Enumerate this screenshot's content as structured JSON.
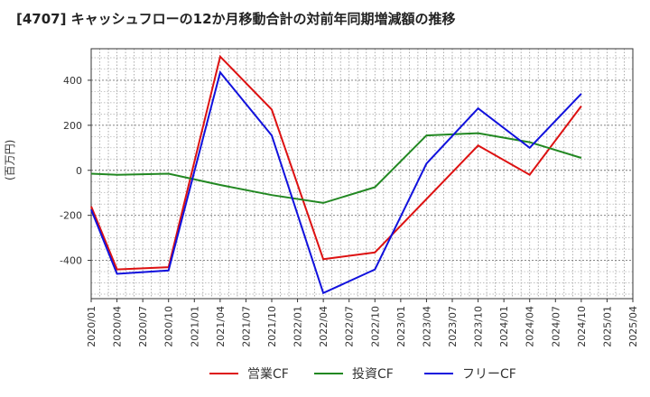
{
  "chart_data": {
    "type": "line",
    "title": "[4707]  キャッシュフローの12か月移動合計の対前年同期増減額の推移",
    "ylabel": "(百万円)",
    "xlabel": "",
    "ylim": [
      -570,
      540
    ],
    "yticks": [
      -400,
      -200,
      0,
      200,
      400
    ],
    "grid": true,
    "legend_position": "bottom",
    "categories": [
      "2020/01",
      "2020/04",
      "2020/07",
      "2020/10",
      "2021/01",
      "2021/04",
      "2021/07",
      "2021/10",
      "2022/01",
      "2022/04",
      "2022/07",
      "2022/10",
      "2023/01",
      "2023/04",
      "2023/07",
      "2023/10",
      "2024/01",
      "2024/04",
      "2024/07",
      "2024/10",
      "2025/01",
      "2025/04"
    ],
    "series": [
      {
        "name": "営業CF",
        "color": "#dd1111",
        "values": [
          -160,
          -440,
          null,
          -430,
          null,
          505,
          null,
          270,
          null,
          -395,
          null,
          -365,
          null,
          null,
          null,
          110,
          null,
          -20,
          null,
          285,
          null,
          null
        ]
      },
      {
        "name": "投資CF",
        "color": "#228822",
        "values": [
          -15,
          -20,
          null,
          -15,
          null,
          -65,
          null,
          -110,
          null,
          -145,
          null,
          -75,
          null,
          155,
          null,
          165,
          null,
          125,
          null,
          55,
          null,
          null
        ]
      },
      {
        "name": "フリーCF",
        "color": "#1111dd",
        "values": [
          -175,
          -460,
          null,
          -445,
          null,
          435,
          null,
          155,
          null,
          -545,
          null,
          -440,
          null,
          30,
          null,
          275,
          null,
          100,
          null,
          340,
          null,
          null
        ]
      }
    ]
  }
}
